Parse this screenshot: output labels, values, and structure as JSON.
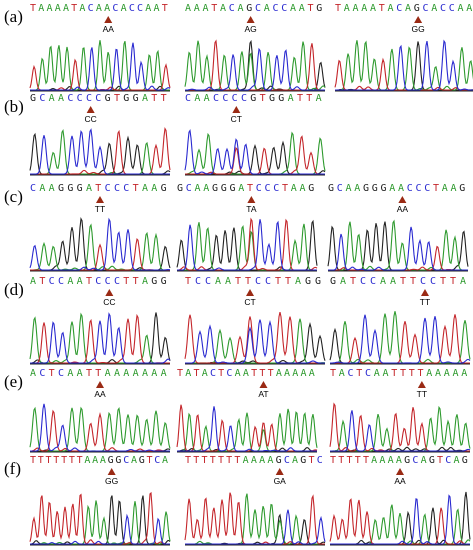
{
  "colors": {
    "A": "#2e9a2e",
    "C": "#2a2ad0",
    "G": "#222222",
    "T": "#c4262b",
    "marker": "#9a2a14"
  },
  "rows": [
    {
      "label": "(a)",
      "panels": [
        {
          "seq": "TAAAATACAACACCAAT",
          "marker_index": 9,
          "genotype": "AA"
        },
        {
          "seq": "AAATACAGCACCAATG",
          "marker_index": 7,
          "genotype": "AG"
        },
        {
          "seq": "TAAAATACAGCACCAA",
          "marker_index": 9,
          "genotype": "GG"
        }
      ]
    },
    {
      "label": "(b)",
      "panels": [
        {
          "seq": "GCAACCCCGTGGATT",
          "marker_index": 6,
          "genotype": "CC"
        },
        {
          "seq": "CAACCCCGTGGATTA",
          "marker_index": 5,
          "genotype": "CT"
        }
      ]
    },
    {
      "label": "(c)",
      "panels": [
        {
          "seq": "CAAGGGATCCCTAAG",
          "marker_index": 7,
          "genotype": "TT"
        },
        {
          "seq": "GCAAGGGATCCCTAAG",
          "marker_index": 8,
          "genotype": "TA"
        },
        {
          "seq": "GCAAGGGAACCCTAAG",
          "marker_index": 8,
          "genotype": "AA"
        }
      ]
    },
    {
      "label": "(d)",
      "panels": [
        {
          "seq": "ATCCAATCCCTTAGG",
          "marker_index": 8,
          "genotype": "CC"
        },
        {
          "seq": "TCCAATTCCTTAGG",
          "marker_index": 6,
          "genotype": "CT"
        },
        {
          "seq": "GATCCAATTCCTTA",
          "marker_index": 9,
          "genotype": "TT"
        }
      ]
    },
    {
      "label": "(e)",
      "panels": [
        {
          "seq": "ACTCAATTAAAAAAA",
          "marker_index": 7,
          "genotype": "AA"
        },
        {
          "seq": "TATACTCAATTTAAAAA",
          "marker_index": 10,
          "genotype": "AT"
        },
        {
          "seq": "TACTCAATTTTAAAAA",
          "marker_index": 10,
          "genotype": "TT"
        }
      ]
    },
    {
      "label": "(f)",
      "panels": [
        {
          "seq": "TTTTTTTAAAGGCAGTCA",
          "marker_index": 10,
          "genotype": "GG"
        },
        {
          "seq": "TTTTTTTAAAAGCAGTC",
          "marker_index": 11,
          "genotype": "GA"
        },
        {
          "seq": "TTTTTAAAAGCAGTCAG",
          "marker_index": 8,
          "genotype": "AA"
        }
      ]
    }
  ]
}
